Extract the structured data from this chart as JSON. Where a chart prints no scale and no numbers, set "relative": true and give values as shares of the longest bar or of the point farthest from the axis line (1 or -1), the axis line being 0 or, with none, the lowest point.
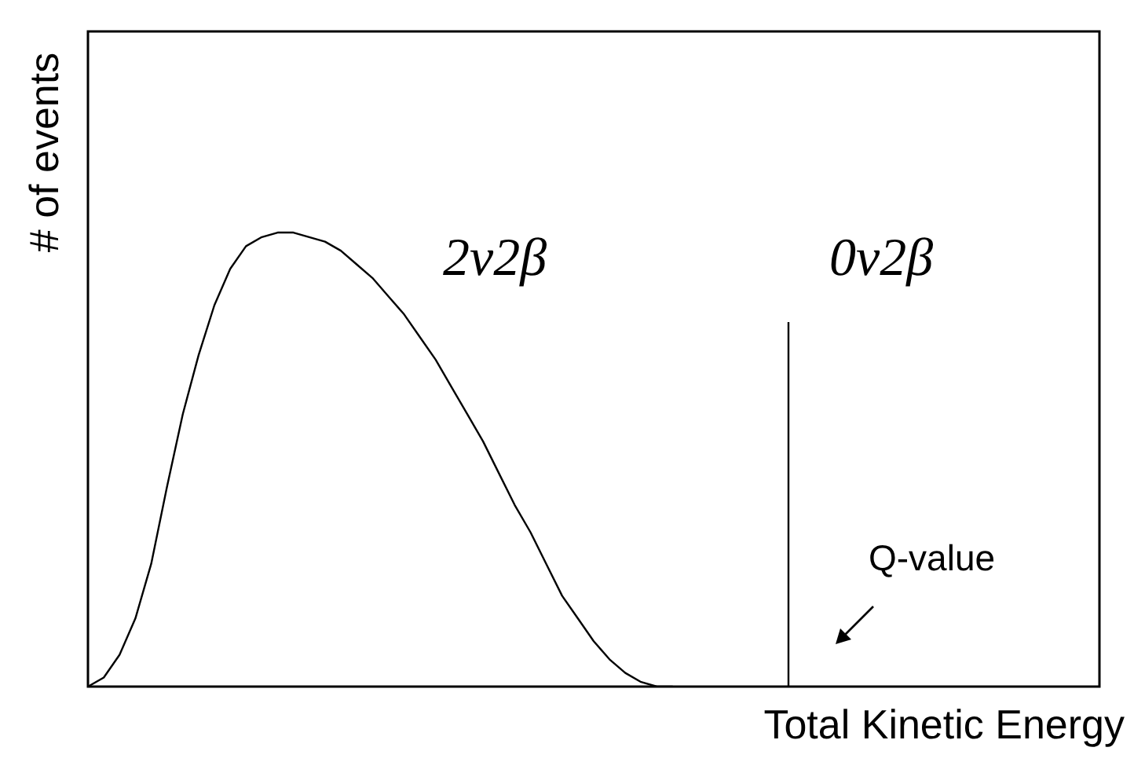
{
  "chart_data": {
    "type": "line",
    "relative": true,
    "xlabel": "Total Kinetic Energy",
    "ylabel": "# of events",
    "categories": [
      null,
      null,
      null,
      null,
      null,
      null,
      null,
      null,
      null,
      null,
      null,
      null,
      null,
      null,
      null,
      null,
      null,
      null,
      null,
      null,
      null,
      null,
      null,
      null,
      null,
      null,
      null,
      null,
      null,
      null,
      null,
      null,
      null,
      null,
      null,
      null,
      null,
      null,
      null,
      null,
      null,
      null,
      null,
      null,
      null,
      null,
      null,
      null,
      null,
      null,
      null,
      null,
      null,
      null,
      null,
      null,
      null,
      null,
      null,
      null,
      null,
      null,
      null,
      null,
      null
    ],
    "series": [
      {
        "color": "#000000",
        "values": [
          0,
          0.02,
          0.07,
          0.15,
          0.27,
          0.44,
          0.6,
          0.73,
          0.84,
          0.92,
          0.97,
          0.99,
          1,
          1,
          0.99,
          0.98,
          0.96,
          0.93,
          0.9,
          0.86,
          0.82,
          0.77,
          0.72,
          0.66,
          0.6,
          0.54,
          0.47,
          0.4,
          0.34,
          0.27,
          0.2,
          0.15,
          0.1,
          0.06,
          0.03,
          0.01,
          0,
          0,
          null,
          null,
          null,
          null,
          null,
          null,
          null,
          null,
          null,
          null,
          null,
          null,
          null,
          null,
          null,
          null,
          null,
          null,
          null,
          null,
          null,
          null,
          null,
          null,
          null,
          null,
          null
        ]
      }
    ],
    "annotations": [
      "2ν2β",
      "0ν2β",
      "Q-value"
    ],
    "grid": false,
    "legend": false,
    "marker": "none",
    "line_style": "solid"
  }
}
